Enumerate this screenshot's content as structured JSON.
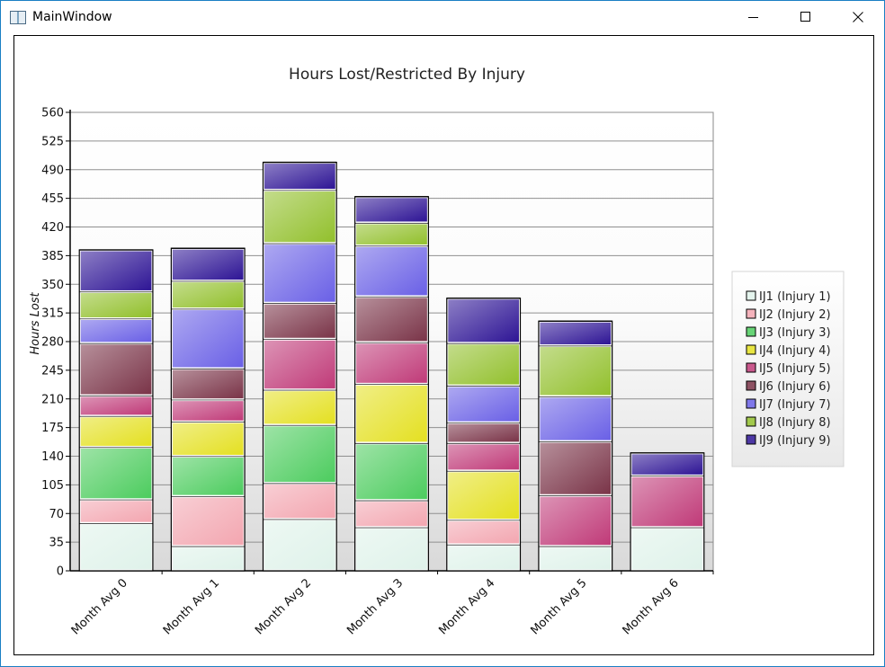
{
  "window": {
    "title": "MainWindow",
    "controls": [
      "minimize-icon",
      "maximize-icon",
      "close-icon"
    ]
  },
  "chart_data": {
    "type": "bar",
    "stacked": true,
    "title": "Hours Lost/Restricted By Injury",
    "xlabel": "",
    "ylabel": "Hours Lost",
    "ylim": [
      0,
      560
    ],
    "yticks": [
      0,
      35,
      70,
      105,
      140,
      175,
      210,
      245,
      280,
      315,
      350,
      385,
      420,
      455,
      490,
      525,
      560
    ],
    "grid": true,
    "legend_position": "right",
    "categories": [
      "Month Avg 0",
      "Month Avg 1",
      "Month Avg 2",
      "Month Avg 3",
      "Month Avg 4",
      "Month Avg 5",
      "Month Avg 6"
    ],
    "series": [
      {
        "name": "IJ1 (Injury 1)",
        "color": "#dff2ea",
        "values": [
          58,
          30,
          63,
          53,
          32,
          30,
          53
        ]
      },
      {
        "name": "IJ2 (Injury 2)",
        "color": "#f3a6b0",
        "values": [
          29,
          61,
          44,
          33,
          30,
          0,
          0
        ]
      },
      {
        "name": "IJ3 (Injury 3)",
        "color": "#4ccc5e",
        "values": [
          64,
          49,
          71,
          70,
          0,
          0,
          0
        ]
      },
      {
        "name": "IJ4 (Injury 4)",
        "color": "#e4e021",
        "values": [
          38,
          42,
          43,
          72,
          60,
          0,
          0
        ]
      },
      {
        "name": "IJ5 (Injury 5)",
        "color": "#c03a78",
        "values": [
          25,
          27,
          62,
          51,
          34,
          62,
          63
        ]
      },
      {
        "name": "IJ6 (Injury 6)",
        "color": "#7a3448",
        "values": [
          64,
          38,
          44,
          56,
          25,
          66,
          0
        ]
      },
      {
        "name": "IJ7 (Injury 7)",
        "color": "#6a60e6",
        "values": [
          30,
          73,
          73,
          62,
          45,
          55,
          0
        ]
      },
      {
        "name": "IJ8 (Injury 8)",
        "color": "#92c02c",
        "values": [
          33,
          34,
          65,
          28,
          52,
          62,
          0
        ]
      },
      {
        "name": "IJ9 (Injury 9)",
        "color": "#2e1595",
        "values": [
          51,
          40,
          34,
          32,
          55,
          30,
          28
        ]
      }
    ]
  }
}
